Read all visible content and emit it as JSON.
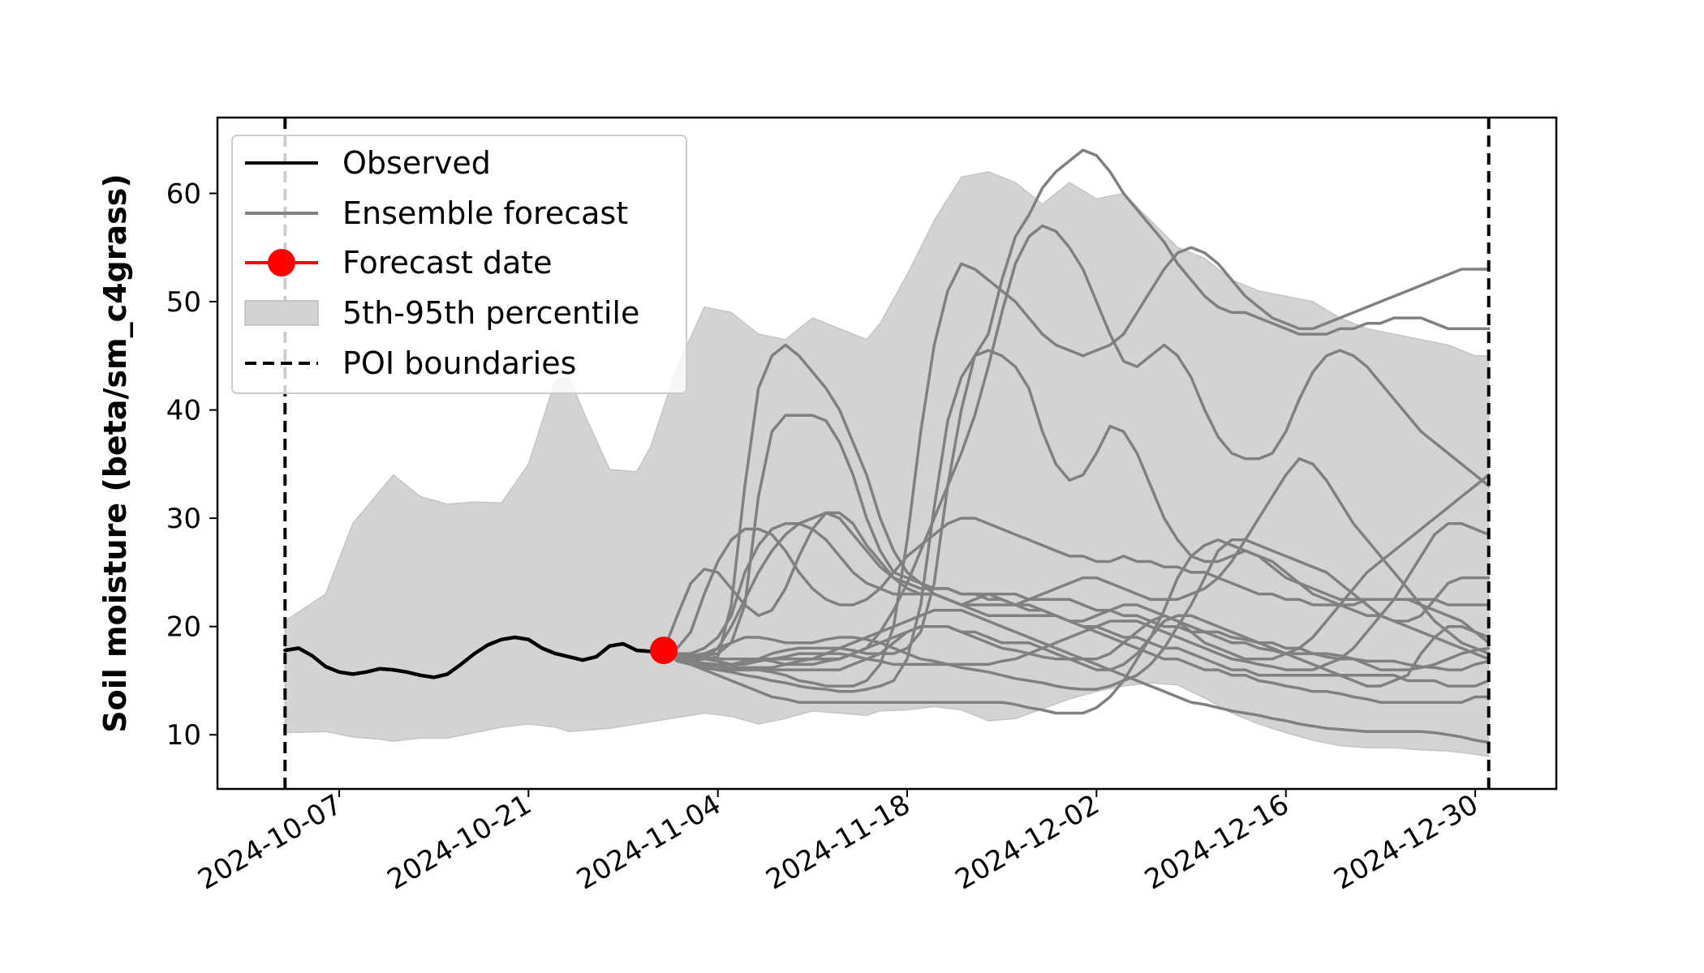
{
  "chart_data": {
    "type": "line",
    "ylabel": "Soil moisture (beta/sm_c4grass)",
    "xlabel": "",
    "ylim": [
      5,
      67
    ],
    "xlim": [
      "2024-09-28",
      "2025-01-05"
    ],
    "x_ticks": [
      "2024-10-07",
      "2024-10-21",
      "2024-11-04",
      "2024-11-18",
      "2024-12-02",
      "2024-12-16",
      "2024-12-30"
    ],
    "y_ticks": [
      10,
      20,
      30,
      40,
      50,
      60
    ],
    "grid": false,
    "legend": {
      "placement": "top-left",
      "entries": [
        "Observed",
        "Ensemble forecast",
        "Forecast date",
        "5th-95th percentile",
        "POI boundaries"
      ]
    },
    "colors": {
      "observed": "#000000",
      "ensemble": "#808080",
      "forecast_date": "#ff0000",
      "band": "#d3d3d3",
      "poi": "#000000"
    },
    "poi_boundaries": [
      "2024-10-03",
      "2024-12-31"
    ],
    "forecast_date": {
      "x": "2024-10-31",
      "y": 17.8
    },
    "observed": {
      "name": "Observed",
      "points": [
        [
          "2024-10-03",
          17.8
        ],
        [
          "2024-10-04",
          18.0
        ],
        [
          "2024-10-05",
          17.3
        ],
        [
          "2024-10-06",
          16.3
        ],
        [
          "2024-10-07",
          15.8
        ],
        [
          "2024-10-08",
          15.6
        ],
        [
          "2024-10-09",
          15.8
        ],
        [
          "2024-10-10",
          16.1
        ],
        [
          "2024-10-11",
          16.0
        ],
        [
          "2024-10-12",
          15.8
        ],
        [
          "2024-10-13",
          15.5
        ],
        [
          "2024-10-14",
          15.3
        ],
        [
          "2024-10-15",
          15.6
        ],
        [
          "2024-10-16",
          16.5
        ],
        [
          "2024-10-17",
          17.5
        ],
        [
          "2024-10-18",
          18.3
        ],
        [
          "2024-10-19",
          18.8
        ],
        [
          "2024-10-20",
          19.0
        ],
        [
          "2024-10-21",
          18.8
        ],
        [
          "2024-10-22",
          18.0
        ],
        [
          "2024-10-23",
          17.5
        ],
        [
          "2024-10-24",
          17.2
        ],
        [
          "2024-10-25",
          16.9
        ],
        [
          "2024-10-26",
          17.2
        ],
        [
          "2024-10-27",
          18.2
        ],
        [
          "2024-10-28",
          18.4
        ],
        [
          "2024-10-29",
          17.8
        ],
        [
          "2024-10-30",
          17.7
        ],
        [
          "2024-10-31",
          17.8
        ]
      ]
    },
    "percentile_band": {
      "name": "5th-95th percentile",
      "x": [
        "2024-10-03",
        "2024-10-06",
        "2024-10-08",
        "2024-10-10",
        "2024-10-11",
        "2024-10-13",
        "2024-10-15",
        "2024-10-17",
        "2024-10-19",
        "2024-10-21",
        "2024-10-23",
        "2024-10-24",
        "2024-10-25",
        "2024-10-27",
        "2024-10-29",
        "2024-10-30",
        "2024-11-01",
        "2024-11-03",
        "2024-11-05",
        "2024-11-07",
        "2024-11-09",
        "2024-11-11",
        "2024-11-13",
        "2024-11-15",
        "2024-11-16",
        "2024-11-18",
        "2024-11-20",
        "2024-11-22",
        "2024-11-24",
        "2024-11-26",
        "2024-11-28",
        "2024-11-30",
        "2024-12-02",
        "2024-12-04",
        "2024-12-06",
        "2024-12-08",
        "2024-12-10",
        "2024-12-12",
        "2024-12-14",
        "2024-12-16",
        "2024-12-18",
        "2024-12-20",
        "2024-12-22",
        "2024-12-24",
        "2024-12-26",
        "2024-12-28",
        "2024-12-30",
        "2024-12-31"
      ],
      "upper": [
        20.5,
        23.0,
        29.5,
        32.5,
        34.0,
        32.0,
        31.3,
        31.5,
        31.4,
        35.0,
        42.8,
        43.0,
        40.0,
        34.5,
        34.3,
        36.5,
        44.0,
        49.5,
        49.0,
        47.0,
        46.5,
        48.5,
        47.5,
        46.5,
        48.0,
        52.5,
        57.5,
        61.5,
        62.0,
        61.0,
        59.0,
        61.0,
        59.5,
        60.0,
        57.5,
        55.0,
        54.0,
        52.0,
        51.0,
        50.5,
        50.0,
        48.5,
        47.5,
        47.0,
        46.5,
        46.0,
        45.0,
        45.0
      ],
      "lower": [
        10.2,
        10.3,
        9.8,
        9.6,
        9.4,
        9.7,
        9.7,
        10.2,
        10.7,
        11.0,
        10.7,
        10.3,
        10.4,
        10.6,
        11.0,
        11.2,
        11.6,
        12.0,
        11.7,
        11.0,
        11.5,
        12.2,
        12.0,
        11.8,
        12.2,
        12.3,
        12.6,
        12.3,
        11.3,
        11.5,
        12.4,
        13.3,
        14.0,
        14.5,
        14.8,
        14.6,
        13.4,
        12.0,
        11.0,
        10.2,
        9.5,
        9.0,
        8.8,
        8.8,
        8.6,
        8.5,
        8.2,
        8.0
      ]
    },
    "ensemble_start": "2024-10-31",
    "ensemble_y": [
      [
        17.8,
        17.5,
        17.2,
        17.0,
        17.2,
        22.0,
        33.0,
        42.0,
        45.0,
        46.0,
        45.0,
        43.5,
        42.0,
        40.0,
        37.0,
        34.0,
        30.0,
        27.0,
        25.0,
        24.0,
        23.0,
        22.5,
        22.0,
        22.5,
        23.0,
        22.5,
        22.0,
        21.5,
        21.5,
        21.0,
        20.5,
        20.5,
        21.0,
        21.5,
        22.0,
        22.0,
        21.5,
        21.0,
        20.5,
        20.0,
        19.5,
        19.0,
        18.5,
        18.5,
        18.0,
        17.8,
        17.5,
        17.5,
        17.5,
        17.2,
        17.0,
        17.0,
        16.8,
        16.8,
        16.8,
        16.5,
        16.3,
        16.2,
        16.0,
        16.0,
        16.5,
        16.8
      ],
      [
        17.8,
        17.5,
        17.3,
        17.3,
        17.5,
        18.5,
        22.0,
        32.0,
        38.0,
        39.5,
        39.5,
        39.5,
        39.0,
        37.0,
        34.0,
        30.0,
        27.0,
        25.0,
        24.5,
        24.0,
        23.5,
        23.5,
        23.0,
        23.0,
        23.0,
        23.0,
        23.0,
        22.5,
        22.5,
        22.5,
        22.5,
        22.0,
        21.5,
        21.5,
        21.0,
        21.0,
        20.5,
        20.0,
        20.0,
        19.5,
        19.5,
        19.5,
        19.0,
        18.8,
        18.5,
        18.5,
        18.0,
        18.0,
        17.5,
        17.5,
        17.3,
        17.0,
        16.5,
        16.0,
        16.0,
        16.0,
        16.2,
        16.5,
        17.0,
        17.5,
        17.8,
        18.0
      ],
      [
        17.8,
        18.0,
        19.5,
        23.0,
        26.0,
        28.0,
        29.0,
        29.0,
        28.5,
        27.0,
        25.0,
        23.5,
        22.5,
        22.0,
        22.0,
        22.5,
        23.5,
        25.0,
        26.5,
        27.5,
        28.5,
        29.5,
        30.0,
        30.0,
        29.5,
        29.0,
        28.5,
        28.0,
        27.5,
        27.0,
        26.5,
        26.5,
        26.0,
        26.0,
        26.5,
        26.0,
        26.0,
        25.5,
        25.5,
        25.0,
        25.0,
        24.5,
        24.0,
        23.5,
        23.0,
        23.0,
        22.5,
        22.5,
        22.0,
        22.0,
        22.0,
        22.0,
        22.5,
        22.5,
        22.5,
        22.5,
        22.5,
        22.5,
        22.0,
        22.0,
        22.0,
        22.0
      ],
      [
        17.8,
        21.0,
        24.0,
        25.3,
        25.0,
        23.5,
        22.0,
        21.0,
        21.5,
        23.5,
        26.5,
        29.0,
        30.5,
        30.5,
        29.5,
        27.5,
        26.0,
        24.5,
        23.5,
        23.0,
        23.0,
        22.5,
        22.0,
        21.5,
        21.0,
        21.0,
        21.0,
        21.0,
        21.0,
        21.0,
        20.5,
        20.0,
        20.0,
        19.5,
        19.0,
        19.0,
        18.5,
        18.0,
        18.0,
        17.5,
        17.0,
        16.5,
        16.0,
        16.0,
        15.5,
        15.5,
        15.5,
        15.5,
        15.5,
        15.5,
        15.5,
        15.5,
        15.5,
        15.5,
        15.5,
        15.0,
        15.0,
        15.0,
        14.5,
        14.5,
        14.5,
        15.0
      ],
      [
        17.8,
        17.0,
        16.8,
        17.0,
        18.0,
        20.0,
        22.5,
        25.0,
        27.0,
        28.5,
        29.5,
        30.0,
        30.5,
        30.0,
        28.5,
        27.0,
        25.5,
        24.5,
        24.0,
        23.5,
        23.5,
        23.5,
        23.0,
        23.0,
        22.5,
        22.5,
        22.0,
        22.0,
        21.5,
        21.0,
        20.5,
        20.0,
        19.5,
        19.0,
        18.5,
        18.0,
        17.5,
        17.0,
        17.0,
        16.5,
        16.0,
        16.0,
        15.5,
        15.5,
        15.0,
        14.8,
        14.5,
        14.3,
        14.0,
        14.0,
        13.8,
        13.5,
        13.3,
        13.0,
        13.0,
        13.0,
        13.0,
        13.0,
        13.0,
        13.0,
        13.5,
        13.5
      ],
      [
        17.8,
        17.0,
        16.5,
        16.2,
        16.0,
        16.2,
        16.8,
        17.0,
        16.8,
        16.5,
        16.5,
        16.5,
        16.8,
        17.0,
        17.5,
        18.0,
        19.5,
        21.5,
        24.0,
        27.0,
        30.0,
        33.0,
        36.0,
        39.5,
        44.0,
        49.0,
        53.5,
        56.0,
        57.0,
        56.5,
        55.0,
        53.0,
        50.0,
        47.0,
        44.5,
        44.0,
        45.0,
        46.0,
        45.0,
        43.0,
        40.0,
        37.5,
        36.0,
        35.5,
        35.5,
        36.0,
        38.0,
        41.0,
        43.5,
        45.0,
        45.5,
        45.0,
        44.0,
        42.5,
        41.0,
        39.5,
        38.0,
        37.0,
        36.0,
        35.0,
        34.0,
        33.0
      ],
      [
        17.8,
        17.2,
        16.8,
        16.6,
        16.5,
        16.5,
        16.8,
        17.0,
        17.5,
        17.8,
        18.0,
        18.0,
        18.0,
        18.0,
        17.8,
        17.5,
        17.5,
        17.5,
        18.0,
        19.5,
        24.0,
        33.0,
        40.0,
        45.0,
        47.0,
        52.0,
        56.0,
        58.0,
        60.5,
        62.0,
        63.0,
        64.0,
        63.5,
        62.0,
        60.0,
        58.5,
        57.0,
        55.5,
        53.5,
        52.0,
        50.5,
        49.5,
        49.0,
        49.0,
        48.5,
        48.0,
        47.5,
        47.0,
        47.0,
        47.0,
        47.5,
        47.5,
        48.0,
        48.0,
        48.5,
        48.5,
        48.5,
        48.0,
        47.5,
        47.5,
        47.5,
        47.5
      ],
      [
        17.8,
        17.0,
        16.5,
        16.2,
        16.0,
        16.0,
        16.0,
        16.0,
        15.8,
        15.5,
        15.0,
        14.8,
        14.5,
        14.5,
        14.5,
        15.0,
        16.5,
        20.0,
        28.0,
        38.0,
        46.0,
        51.0,
        53.5,
        53.0,
        52.0,
        51.0,
        50.0,
        48.5,
        47.0,
        46.0,
        45.5,
        45.0,
        45.5,
        46.0,
        47.0,
        49.0,
        51.0,
        53.0,
        54.5,
        55.0,
        54.5,
        53.5,
        52.0,
        50.5,
        49.5,
        48.5,
        48.0,
        47.5,
        47.5,
        48.0,
        48.5,
        49.0,
        49.5,
        50.0,
        50.5,
        51.0,
        51.5,
        52.0,
        52.5,
        53.0,
        53.0,
        53.0
      ],
      [
        17.8,
        16.8,
        16.5,
        16.3,
        16.0,
        15.8,
        15.5,
        15.3,
        15.0,
        14.8,
        14.5,
        14.3,
        14.2,
        14.0,
        14.0,
        14.2,
        14.5,
        15.0,
        17.0,
        22.0,
        31.0,
        39.0,
        43.0,
        45.0,
        45.5,
        45.0,
        44.0,
        42.0,
        38.0,
        35.0,
        33.5,
        34.0,
        36.0,
        38.5,
        38.0,
        36.0,
        33.0,
        30.0,
        28.0,
        26.5,
        26.0,
        26.0,
        26.5,
        27.0,
        26.5,
        25.5,
        24.5,
        24.0,
        23.5,
        23.0,
        22.5,
        22.5,
        22.5,
        22.5,
        22.5,
        22.5,
        22.0,
        21.5,
        21.0,
        20.5,
        19.5,
        18.5
      ],
      [
        17.8,
        17.5,
        17.3,
        17.5,
        18.0,
        18.5,
        19.0,
        19.0,
        18.8,
        18.5,
        18.5,
        18.5,
        18.8,
        19.0,
        19.0,
        18.8,
        18.5,
        18.0,
        17.5,
        17.0,
        16.8,
        16.5,
        16.2,
        16.0,
        15.8,
        15.5,
        15.2,
        15.0,
        14.8,
        14.5,
        14.3,
        14.2,
        14.2,
        14.5,
        15.0,
        15.5,
        16.5,
        18.0,
        20.0,
        22.0,
        24.5,
        27.0,
        28.0,
        28.0,
        27.5,
        27.0,
        26.5,
        26.0,
        25.5,
        25.0,
        24.0,
        23.0,
        22.0,
        21.0,
        20.5,
        20.5,
        21.0,
        22.5,
        24.0,
        24.5,
        24.5,
        24.5
      ],
      [
        17.8,
        17.0,
        16.5,
        16.2,
        16.0,
        16.0,
        16.0,
        16.0,
        16.0,
        16.0,
        16.0,
        16.0,
        16.0,
        16.0,
        16.5,
        17.0,
        17.5,
        18.5,
        19.5,
        20.0,
        20.0,
        20.0,
        19.5,
        19.5,
        19.0,
        18.5,
        18.5,
        18.5,
        18.0,
        17.5,
        17.0,
        16.5,
        16.0,
        16.0,
        16.5,
        17.5,
        19.0,
        21.5,
        24.5,
        26.5,
        27.5,
        28.0,
        27.5,
        27.0,
        26.5,
        26.0,
        25.0,
        24.0,
        23.0,
        22.5,
        22.0,
        21.5,
        21.0,
        21.0,
        20.5,
        20.0,
        19.5,
        19.0,
        18.5,
        18.0,
        17.5,
        17.0
      ],
      [
        17.8,
        17.2,
        16.8,
        16.5,
        16.3,
        16.2,
        16.2,
        16.2,
        16.2,
        16.5,
        16.8,
        17.0,
        17.5,
        18.0,
        18.5,
        19.0,
        19.5,
        20.0,
        20.5,
        21.0,
        21.5,
        21.5,
        21.5,
        21.0,
        20.5,
        20.0,
        19.5,
        19.0,
        18.5,
        18.0,
        17.5,
        17.0,
        16.5,
        16.0,
        15.5,
        15.0,
        14.5,
        14.0,
        13.5,
        13.0,
        12.8,
        12.5,
        12.2,
        12.0,
        11.8,
        11.5,
        11.3,
        11.0,
        10.8,
        10.6,
        10.5,
        10.4,
        10.3,
        10.3,
        10.3,
        10.3,
        10.3,
        10.2,
        10.0,
        9.8,
        9.5,
        9.3
      ],
      [
        17.8,
        17.5,
        17.5,
        18.0,
        19.0,
        21.0,
        25.0,
        27.5,
        29.0,
        29.5,
        29.5,
        29.0,
        28.0,
        26.5,
        25.0,
        24.0,
        23.5,
        23.0,
        23.0,
        23.0,
        23.0,
        22.5,
        22.0,
        22.0,
        22.0,
        22.0,
        22.0,
        22.5,
        23.0,
        23.5,
        24.0,
        24.5,
        24.5,
        24.0,
        23.5,
        23.0,
        22.5,
        22.5,
        22.5,
        23.0,
        23.5,
        24.5,
        26.0,
        28.0,
        30.0,
        32.0,
        34.0,
        35.5,
        35.0,
        33.5,
        31.5,
        29.5,
        28.0,
        26.5,
        25.0,
        23.5,
        22.0,
        20.5,
        19.5,
        18.5,
        18.0,
        17.5
      ],
      [
        17.8,
        17.0,
        16.5,
        16.0,
        15.5,
        15.0,
        14.5,
        14.0,
        13.5,
        13.3,
        13.0,
        13.0,
        13.0,
        13.0,
        13.0,
        13.0,
        13.0,
        13.0,
        13.0,
        13.0,
        13.0,
        13.0,
        13.0,
        13.0,
        13.0,
        13.0,
        12.8,
        12.5,
        12.3,
        12.0,
        12.0,
        12.0,
        12.5,
        13.5,
        15.0,
        17.0,
        19.0,
        20.5,
        21.0,
        21.0,
        20.5,
        20.0,
        19.5,
        19.0,
        18.5,
        18.0,
        17.5,
        17.0,
        16.5,
        16.0,
        15.5,
        15.0,
        14.5,
        14.5,
        15.0,
        15.5,
        17.5,
        19.0,
        20.0,
        20.0,
        19.5,
        19.0
      ],
      [
        17.8,
        17.3,
        17.0,
        17.0,
        17.0,
        17.0,
        17.0,
        17.0,
        17.0,
        17.0,
        17.0,
        17.0,
        17.0,
        17.0,
        17.5,
        18.0,
        18.5,
        19.0,
        19.5,
        20.0,
        20.0,
        20.0,
        19.5,
        19.0,
        18.5,
        18.0,
        17.8,
        17.5,
        17.2,
        17.0,
        17.0,
        17.0,
        17.0,
        17.5,
        18.5,
        19.5,
        20.5,
        21.0,
        20.5,
        19.5,
        18.5,
        18.0,
        17.5,
        17.0,
        17.0,
        17.0,
        17.5,
        18.0,
        19.0,
        20.5,
        22.0,
        23.5,
        25.0,
        26.0,
        27.0,
        28.0,
        29.0,
        30.0,
        31.0,
        32.0,
        33.0,
        34.0
      ],
      [
        17.8,
        17.5,
        17.2,
        17.0,
        16.8,
        16.5,
        16.5,
        16.8,
        17.0,
        17.2,
        17.5,
        17.5,
        17.5,
        17.5,
        17.3,
        17.0,
        16.8,
        16.5,
        16.5,
        16.5,
        16.5,
        16.5,
        16.5,
        16.5,
        16.5,
        16.8,
        17.0,
        17.5,
        18.0,
        18.5,
        19.0,
        19.5,
        20.0,
        20.5,
        20.5,
        20.5,
        20.0,
        19.5,
        19.0,
        18.5,
        18.0,
        17.5,
        17.0,
        16.8,
        16.5,
        16.3,
        16.0,
        16.0,
        16.0,
        16.5,
        17.0,
        18.0,
        19.5,
        21.0,
        22.5,
        24.5,
        26.5,
        28.5,
        29.5,
        29.5,
        29.0,
        28.5
      ]
    ]
  }
}
